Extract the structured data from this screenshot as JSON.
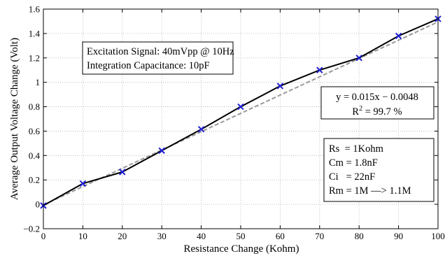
{
  "chart_data": {
    "type": "line",
    "xlabel": "Resistance Change (Kohm)",
    "ylabel": "Average Output Voltage Change (Volt)",
    "xlim": [
      0,
      100
    ],
    "ylim": [
      -0.2,
      1.6
    ],
    "xticks": [
      "0",
      "10",
      "20",
      "30",
      "40",
      "50",
      "60",
      "70",
      "80",
      "90",
      "100"
    ],
    "yticks": [
      "−0.2",
      "0",
      "0.2",
      "0.4",
      "0.6",
      "0.8",
      "1",
      "1.2",
      "1.4",
      "1.6"
    ],
    "grid": true,
    "series": [
      {
        "x": [
          0,
          10,
          20,
          30,
          40,
          50,
          60,
          70,
          80,
          90,
          100
        ],
        "y": [
          -0.01,
          0.17,
          0.265,
          0.44,
          0.615,
          0.8,
          0.97,
          1.1,
          1.2,
          1.38,
          1.52
        ],
        "color": "#000000",
        "marker": "x",
        "marker_color": "#1f1fd6"
      }
    ],
    "fit": {
      "slope": 0.015,
      "intercept": -0.0048,
      "color": "#999999",
      "style": "dashed"
    },
    "annotations": {
      "conditions": [
        "Excitation Signal: 40mVpp @ 10Hz",
        "Integration Capacitance: 10pF"
      ],
      "equation": "y = 0.015x − 0.0048",
      "r2_prefix": "R",
      "r2_exponent": "2",
      "r2_suffix": " = 99.7 %",
      "params": [
        "Rs  = 1Kohm",
        "Cm = 1.8nF",
        "Ci   = 22nF",
        "Rm = 1M —> 1.1M"
      ]
    }
  }
}
